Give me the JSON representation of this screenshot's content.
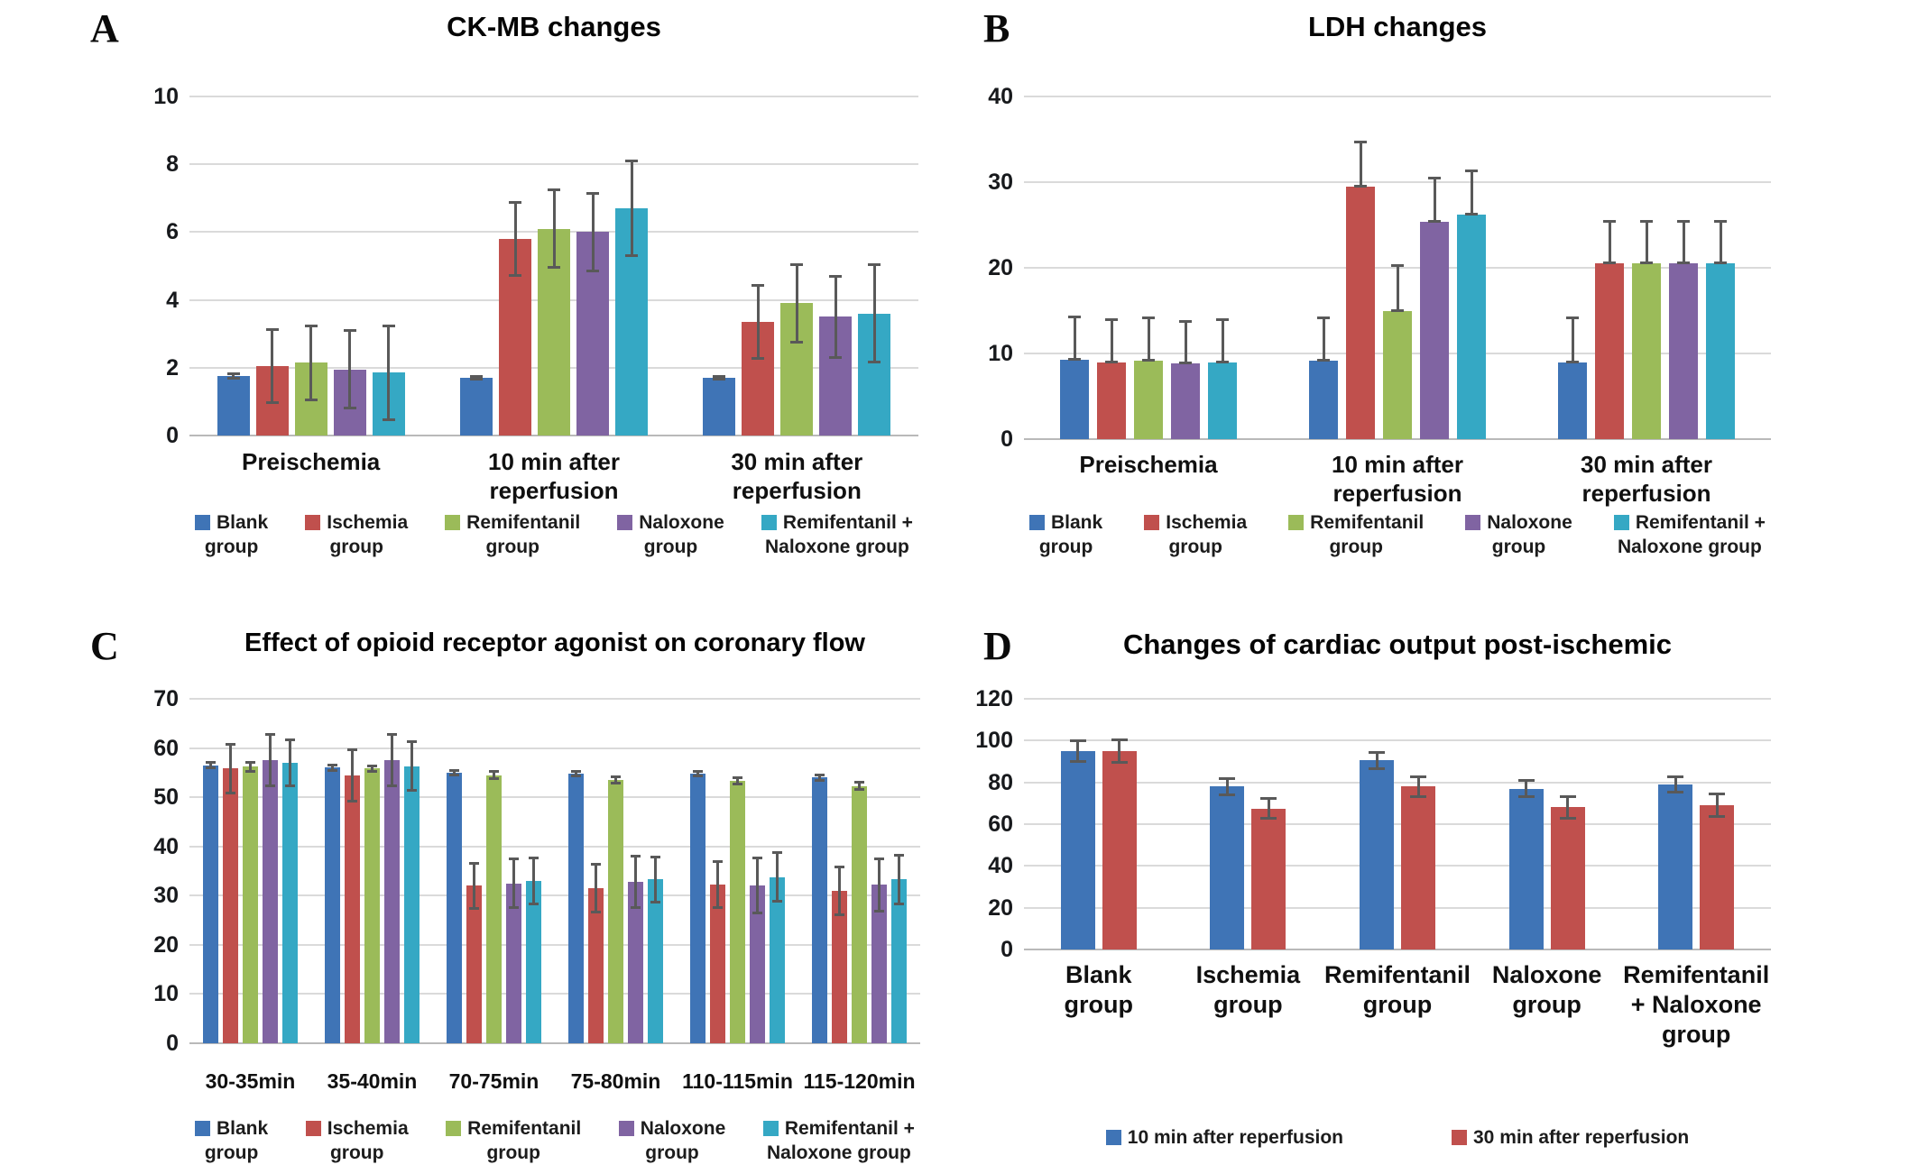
{
  "figure": {
    "background_color": "#ffffff",
    "grid_color": "#dadada",
    "axis_line_color": "#b9b9b9",
    "error_bar_color": "#595959",
    "text_color": "#101010"
  },
  "chart_data": [
    {
      "id": "A",
      "letter": "A",
      "type": "bar",
      "title": "CK-MB changes",
      "xlabel": "",
      "ylabel": "",
      "ylim": [
        0,
        10
      ],
      "yticks": [
        0,
        2,
        4,
        6,
        8,
        10
      ],
      "grid": true,
      "legend_position": "bottom",
      "error_bars": "both",
      "categories": [
        "Preischemia",
        "10 min after\nreperfusion",
        "30 min after\nreperfusion"
      ],
      "series": [
        {
          "name": "Blank group",
          "legend": "Blank\ngroup",
          "color": "#3F74B6",
          "values": [
            1.75,
            1.7,
            1.7
          ],
          "errors": [
            0.08,
            0.06,
            0.06
          ]
        },
        {
          "name": "Ischemia group",
          "legend": "Ischemia\ngroup",
          "color": "#C0504D",
          "values": [
            2.05,
            5.8,
            3.35
          ],
          "errors": [
            1.1,
            1.1,
            1.1
          ]
        },
        {
          "name": "Remifentanil group",
          "legend": "Remifentanil\ngroup",
          "color": "#9BBB59",
          "values": [
            2.15,
            6.1,
            3.9
          ],
          "errors": [
            1.1,
            1.15,
            1.15
          ]
        },
        {
          "name": "Naloxone group",
          "legend": "Naloxone\ngroup",
          "color": "#8064A2",
          "values": [
            1.95,
            6.0,
            3.5
          ],
          "errors": [
            1.15,
            1.15,
            1.2
          ]
        },
        {
          "name": "Remifentanil + Naloxone group",
          "legend": "Remifentanil +\nNaloxone group",
          "color": "#35A8C4",
          "values": [
            1.85,
            6.7,
            3.6
          ],
          "errors": [
            1.4,
            1.4,
            1.45
          ]
        }
      ]
    },
    {
      "id": "B",
      "letter": "B",
      "type": "bar",
      "title": "LDH changes",
      "xlabel": "",
      "ylabel": "",
      "ylim": [
        0,
        40
      ],
      "yticks": [
        0,
        10,
        20,
        30,
        40
      ],
      "grid": true,
      "legend_position": "bottom",
      "error_bars": "up",
      "categories": [
        "Preischemia",
        "10 min after\nreperfusion",
        "30 min after\nreperfusion"
      ],
      "series": [
        {
          "name": "Blank group",
          "legend": "Blank\ngroup",
          "color": "#3F74B6",
          "values": [
            9.3,
            9.2,
            9.0
          ],
          "errors": [
            5.0,
            5.0,
            5.2
          ]
        },
        {
          "name": "Ischemia group",
          "legend": "Ischemia\ngroup",
          "color": "#C0504D",
          "values": [
            9.0,
            29.5,
            20.5
          ],
          "errors": [
            5.0,
            5.2,
            5.0
          ]
        },
        {
          "name": "Remifentanil group",
          "legend": "Remifentanil\ngroup",
          "color": "#9BBB59",
          "values": [
            9.2,
            15.0,
            20.5
          ],
          "errors": [
            5.0,
            5.3,
            5.0
          ]
        },
        {
          "name": "Naloxone group",
          "legend": "Naloxone\ngroup",
          "color": "#8064A2",
          "values": [
            8.8,
            25.4,
            20.5
          ],
          "errors": [
            5.0,
            5.1,
            5.0
          ]
        },
        {
          "name": "Remifentanil + Naloxone group",
          "legend": "Remifentanil +\nNaloxone group",
          "color": "#35A8C4",
          "values": [
            8.9,
            26.2,
            20.5
          ],
          "errors": [
            5.1,
            5.2,
            5.0
          ]
        }
      ]
    },
    {
      "id": "C",
      "letter": "C",
      "type": "bar",
      "title": "Effect of opioid receptor agonist on coronary flow",
      "xlabel": "",
      "ylabel": "",
      "ylim": [
        0,
        70
      ],
      "yticks": [
        0,
        10,
        20,
        30,
        40,
        50,
        60,
        70
      ],
      "grid": true,
      "legend_position": "bottom",
      "error_bars": "both",
      "categories": [
        "30-35min",
        "35-40min",
        "70-75min",
        "75-80min",
        "110-115min",
        "115-120min"
      ],
      "series": [
        {
          "name": "Blank group",
          "legend": "Blank\ngroup",
          "color": "#3F74B6",
          "values": [
            56.5,
            56.0,
            55.0,
            54.8,
            54.8,
            54.0
          ],
          "errors": [
            0.7,
            0.6,
            0.6,
            0.6,
            0.6,
            0.6
          ]
        },
        {
          "name": "Ischemia group",
          "legend": "Ischemia\ngroup",
          "color": "#C0504D",
          "values": [
            55.8,
            54.5,
            32.0,
            31.5,
            32.2,
            31.0
          ],
          "errors": [
            5.0,
            5.3,
            4.7,
            5.0,
            4.8,
            5.0
          ]
        },
        {
          "name": "Remifentanil group",
          "legend": "Remifentanil\ngroup",
          "color": "#9BBB59",
          "values": [
            56.2,
            55.8,
            54.5,
            53.5,
            53.3,
            52.3
          ],
          "errors": [
            1.0,
            0.7,
            0.8,
            0.7,
            0.7,
            0.8
          ]
        },
        {
          "name": "Naloxone group",
          "legend": "Naloxone\ngroup",
          "color": "#8064A2",
          "values": [
            57.5,
            57.6,
            32.5,
            32.8,
            32.0,
            32.2
          ],
          "errors": [
            5.3,
            5.3,
            5.0,
            5.3,
            5.7,
            5.4
          ]
        },
        {
          "name": "Remifentanil + Naloxone group",
          "legend": "Remifentanil +\nNaloxone  group",
          "color": "#35A8C4",
          "values": [
            57.0,
            56.3,
            33.0,
            33.3,
            33.8,
            33.3
          ],
          "errors": [
            4.8,
            5.0,
            4.7,
            4.7,
            5.0,
            5.0
          ]
        }
      ]
    },
    {
      "id": "D",
      "letter": "D",
      "type": "bar",
      "title": "Changes of cardiac output post-ischemic",
      "xlabel": "",
      "ylabel": "",
      "ylim": [
        0,
        120
      ],
      "yticks": [
        0,
        20,
        40,
        60,
        80,
        100,
        120
      ],
      "grid": true,
      "legend_position": "bottom",
      "error_bars": "both",
      "categories": [
        "Blank\ngroup",
        "Ischemia\ngroup",
        "Remifentanil\ngroup",
        "Naloxone\ngroup",
        "Remifentanil\n+ Naloxone\ngroup"
      ],
      "series": [
        {
          "name": "10 min after reperfusion",
          "legend": "10 min after reperfusion",
          "color": "#3F74B6",
          "values": [
            95,
            78,
            90.5,
            77,
            79
          ],
          "errors": [
            5,
            4,
            4,
            4,
            4
          ]
        },
        {
          "name": "30 min after reperfusion",
          "legend": "30 min after reperfusion",
          "color": "#C0504D",
          "values": [
            95,
            67.5,
            78,
            68,
            69
          ],
          "errors": [
            5.5,
            5,
            5,
            5.5,
            5.5
          ]
        }
      ]
    }
  ]
}
